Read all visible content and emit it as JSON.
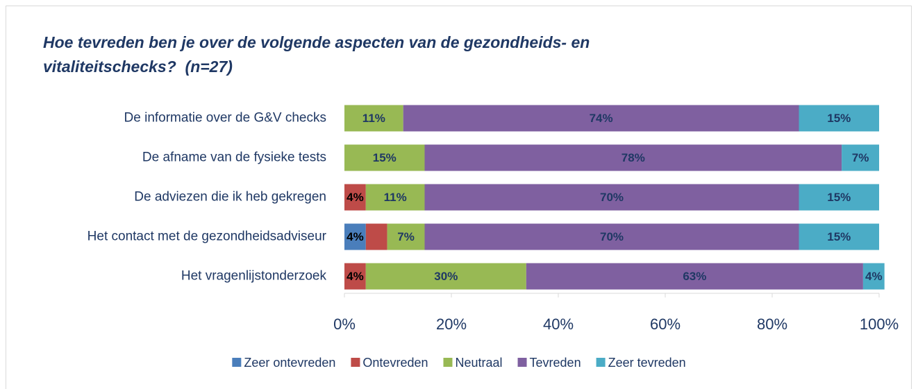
{
  "chart_data": {
    "type": "stacked_bar_horizontal",
    "title": "Hoe tevreden ben je over de volgende aspecten van de gezondheids- en vitaliteitschecks?  (n=27)",
    "categories": [
      "De informatie over de G&V checks",
      "De afname van de fysieke tests",
      "De adviezen die ik heb gekregen",
      "Het contact met de gezondheidsadviseur",
      "Het vragenlijstonderzoek"
    ],
    "series": [
      {
        "name": "Zeer ontevreden",
        "color": "#4a7ebb",
        "values": [
          0,
          0,
          0,
          4,
          0
        ],
        "value_labels": [
          null,
          null,
          null,
          "4%",
          null
        ]
      },
      {
        "name": "Ontevreden",
        "color": "#be4b48",
        "values": [
          0,
          0,
          4,
          4,
          4
        ],
        "value_labels": [
          null,
          null,
          "4%",
          null,
          "4%"
        ]
      },
      {
        "name": "Neutraal",
        "color": "#98b954",
        "values": [
          11,
          15,
          11,
          7,
          30
        ],
        "value_labels": [
          "11%",
          "15%",
          "11%",
          "7%",
          "30%"
        ]
      },
      {
        "name": "Tevreden",
        "color": "#7f60a0",
        "values": [
          74,
          78,
          70,
          70,
          63
        ],
        "value_labels": [
          "74%",
          "78%",
          "70%",
          "70%",
          "63%"
        ]
      },
      {
        "name": "Zeer tevreden",
        "color": "#4bacc6",
        "values": [
          15,
          7,
          15,
          15,
          4
        ],
        "value_labels": [
          "15%",
          "7%",
          "15%",
          "15%",
          "4%"
        ]
      }
    ],
    "xlim": [
      0,
      100
    ],
    "xticks": [
      {
        "value": 0,
        "label": "0%"
      },
      {
        "value": 20,
        "label": "20%"
      },
      {
        "value": 40,
        "label": "40%"
      },
      {
        "value": 60,
        "label": "60%"
      },
      {
        "value": 80,
        "label": "80%"
      },
      {
        "value": 100,
        "label": "100%"
      }
    ],
    "legend": "bottom"
  }
}
